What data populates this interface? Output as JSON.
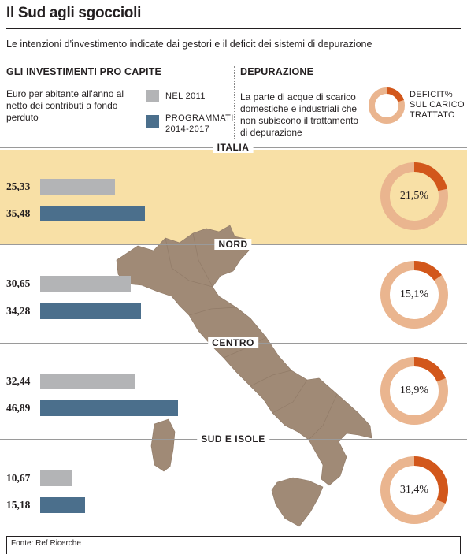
{
  "title": "Il Sud agli sgoccioli",
  "subtitle": "Le intenzioni d'investimento indicate dai gestori e il deficit dei sistemi di depurazione",
  "left_panel": {
    "heading": "GLI INVESTIMENTI PRO CAPITE",
    "description": "Euro per abitante all'anno al netto dei contributi a fondo perduto",
    "legend_2011": "NEL 2011",
    "legend_programmed": "PROGRAMMATI 2014-2017"
  },
  "right_panel": {
    "heading": "DEPURAZIONE",
    "description": "La parte di acque di scarico domestiche e industriali che non subiscono il trattamento di depurazione",
    "legend_label": "DEFICIT% SUL CARICO TRATTATO"
  },
  "colors": {
    "bar_2011": "#b3b4b6",
    "bar_programmed": "#4b6f8c",
    "donut_deficit": "#d2571b",
    "donut_rest": "#eab58f",
    "highlight_band": "#f8e0a6",
    "map": "#a08a76"
  },
  "chart_data": {
    "type": "bar",
    "orientation": "horizontal",
    "categories": [
      "ITALIA",
      "NORD",
      "CENTRO",
      "SUD E ISOLE"
    ],
    "series": [
      {
        "name": "NEL 2011",
        "values": [
          25.33,
          30.65,
          32.44,
          10.67
        ]
      },
      {
        "name": "PROGRAMMATI 2014-2017",
        "values": [
          35.48,
          34.28,
          46.89,
          15.18
        ]
      }
    ],
    "value_labels_2011": [
      "25,33",
      "30,65",
      "32,44",
      "10,67"
    ],
    "value_labels_programmed": [
      "35,48",
      "34,28",
      "46,89",
      "15,18"
    ],
    "deficit_percent": [
      21.5,
      15.1,
      18.9,
      31.4
    ],
    "deficit_labels": [
      "21,5%",
      "15,1%",
      "18,9%",
      "31,4%"
    ],
    "grid": false,
    "highlighted_category": "ITALIA"
  },
  "source": "Fonte: Ref Ricerche"
}
